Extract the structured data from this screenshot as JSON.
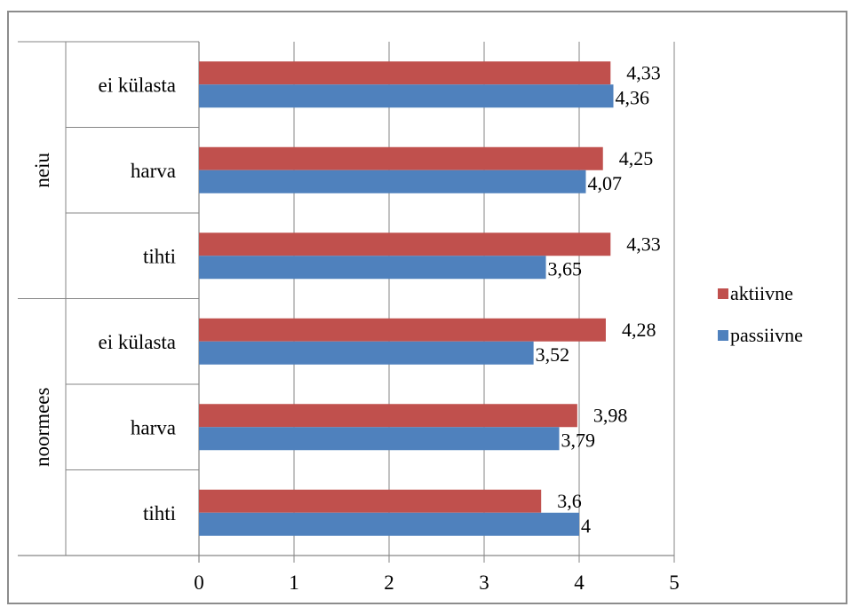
{
  "chart_data": {
    "type": "bar",
    "orientation": "horizontal",
    "groups": [
      {
        "name": "neiu",
        "categories": [
          "ei külasta",
          "harva",
          "tihti"
        ]
      },
      {
        "name": "noormees",
        "categories": [
          "ei külasta",
          "harva",
          "tihti"
        ]
      }
    ],
    "categories": [
      "neiu — ei külasta",
      "neiu — harva",
      "neiu — tihti",
      "noormees — ei külasta",
      "noormees — harva",
      "noormees — tihti"
    ],
    "series": [
      {
        "name": "aktiivne",
        "color": "#c0504d",
        "values": [
          4.33,
          4.25,
          4.33,
          4.28,
          3.98,
          3.6
        ],
        "labels": [
          "4,33",
          "4,25",
          "4,33",
          "4,28",
          "3,98",
          "3,6"
        ]
      },
      {
        "name": "passiivne",
        "color": "#4f81bd",
        "values": [
          4.36,
          4.07,
          3.65,
          3.52,
          3.79,
          4
        ],
        "labels": [
          "4,36",
          "4,07",
          "3,65",
          "3,52",
          "3,79",
          "4"
        ]
      }
    ],
    "xlim": [
      0,
      5
    ],
    "xticks": [
      "0",
      "1",
      "2",
      "3",
      "4",
      "5"
    ],
    "grid": true,
    "legend": {
      "position": "right",
      "entries": [
        "aktiivne",
        "passiivne"
      ]
    },
    "title": "",
    "xlabel": "",
    "ylabel": ""
  }
}
